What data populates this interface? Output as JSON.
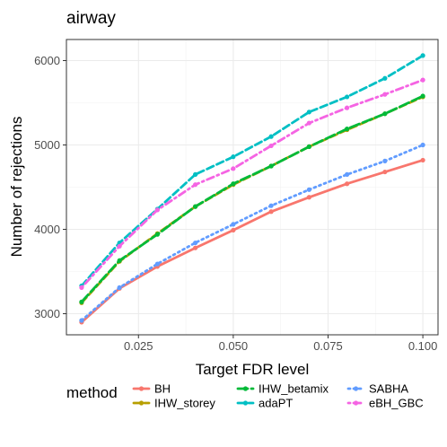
{
  "chart_data": {
    "type": "line",
    "title": "airway",
    "xlabel": "Target FDR level",
    "ylabel": "Number of rejections",
    "x": [
      0.01,
      0.02,
      0.03,
      0.04,
      0.05,
      0.06,
      0.07,
      0.08,
      0.09,
      0.1
    ],
    "xlim": [
      0.006,
      0.104
    ],
    "ylim": [
      2750,
      6250
    ],
    "xticks": [
      0.025,
      0.05,
      0.075,
      0.1
    ],
    "xtick_labels": [
      "0.025",
      "0.050",
      "0.075",
      "0.100"
    ],
    "yticks": [
      3000,
      4000,
      5000,
      6000
    ],
    "ytick_labels": [
      "3000",
      "4000",
      "5000",
      "6000"
    ],
    "grid": true,
    "legend_title": "method",
    "legend_position": "bottom",
    "series": [
      {
        "name": "BH",
        "color": "#F8766D",
        "dash": "solid",
        "values": [
          2900,
          3300,
          3560,
          3780,
          3990,
          4210,
          4380,
          4540,
          4680,
          4820
        ]
      },
      {
        "name": "IHW_storey",
        "color": "#B79F00",
        "dash": "dashed",
        "values": [
          3130,
          3620,
          3950,
          4270,
          4530,
          4750,
          4980,
          5180,
          5370,
          5570
        ]
      },
      {
        "name": "IHW_betamix",
        "color": "#00BA38",
        "dash": "longdash",
        "values": [
          3140,
          3630,
          3940,
          4270,
          4540,
          4750,
          4980,
          5190,
          5370,
          5580
        ]
      },
      {
        "name": "adaPT",
        "color": "#00BFC4",
        "dash": "dashed",
        "values": [
          3330,
          3840,
          4240,
          4650,
          4860,
          5100,
          5390,
          5570,
          5790,
          6060
        ]
      },
      {
        "name": "SABHA",
        "color": "#619CFF",
        "dash": "dotted",
        "values": [
          2920,
          3310,
          3590,
          3840,
          4060,
          4280,
          4470,
          4650,
          4810,
          5000
        ]
      },
      {
        "name": "eBH_GBC",
        "color": "#F564E3",
        "dash": "dotdash",
        "values": [
          3310,
          3800,
          4230,
          4530,
          4720,
          4990,
          5260,
          5440,
          5600,
          5770
        ]
      }
    ]
  }
}
